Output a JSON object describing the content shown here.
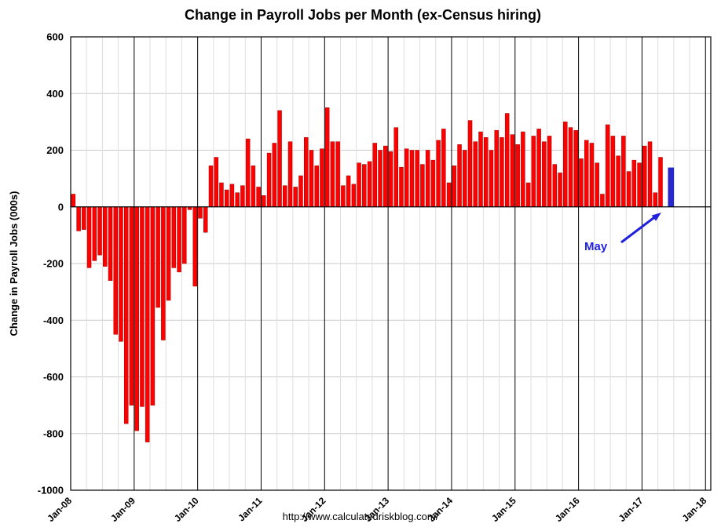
{
  "footer": {
    "url": "http://www.calculatedriskblog.com/"
  },
  "chart_data": {
    "type": "bar",
    "title": "Change in Payroll Jobs per Month (ex-Census hiring)",
    "xlabel": "",
    "ylabel": "Change in Payroll Jobs (000s)",
    "unit": "thousands of jobs",
    "grid": true,
    "legend": "none",
    "ylim": [
      -1000,
      600
    ],
    "ytick_step": 200,
    "yticks": [
      -1000,
      -800,
      -600,
      -400,
      -200,
      0,
      200,
      400,
      600
    ],
    "xticks": [
      "Jan-08",
      "Jan-09",
      "Jan-10",
      "Jan-11",
      "Jan-12",
      "Jan-13",
      "Jan-14",
      "Jan-15",
      "Jan-16",
      "Jan-17",
      "Jan-18"
    ],
    "axis_month_slots": 121,
    "x_start": "Jan-08",
    "x_last_bar": "May-17",
    "bar_color": "#ff0000",
    "bar_edge_color": "#a00000",
    "highlight": {
      "month": "May-17",
      "value": 138,
      "color": "#2828cc",
      "label": "May",
      "annotation_color": "#2222dd"
    },
    "values_by_year": {
      "2008": [
        45,
        -85,
        -80,
        -215,
        -190,
        -170,
        -210,
        -260,
        -450,
        -475,
        -765,
        -700
      ],
      "2009": [
        -790,
        -705,
        -830,
        -700,
        -355,
        -470,
        -330,
        -215,
        -230,
        -200,
        -10,
        -280
      ],
      "2010": [
        -40,
        -90,
        145,
        175,
        85,
        60,
        80,
        50,
        75,
        240,
        145,
        70
      ],
      "2011": [
        40,
        190,
        225,
        340,
        75,
        230,
        70,
        110,
        245,
        200,
        145,
        205
      ],
      "2012": [
        350,
        230,
        230,
        75,
        110,
        80,
        155,
        150,
        160,
        225,
        200,
        215
      ],
      "2013": [
        195,
        280,
        140,
        205,
        200,
        200,
        150,
        200,
        165,
        235,
        275,
        85
      ],
      "2014": [
        145,
        220,
        200,
        305,
        230,
        265,
        245,
        200,
        270,
        245,
        330,
        255
      ],
      "2015": [
        220,
        265,
        85,
        250,
        275,
        230,
        250,
        150,
        120,
        300,
        280,
        270
      ],
      "2016": [
        170,
        235,
        225,
        155,
        45,
        290,
        250,
        180,
        250,
        125,
        165,
        155
      ],
      "2017": [
        215,
        230,
        50,
        175,
        138
      ]
    }
  }
}
